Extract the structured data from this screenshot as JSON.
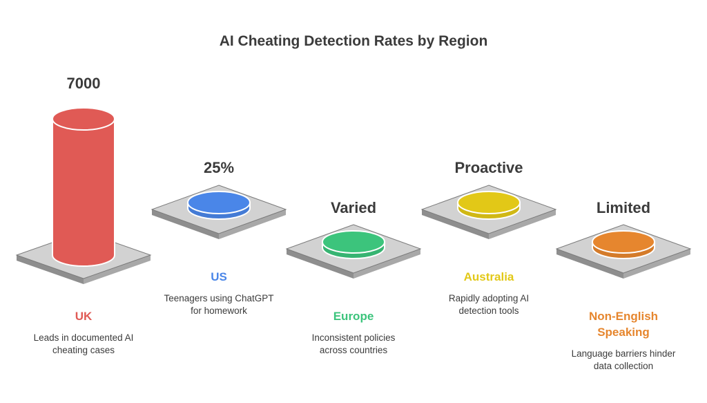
{
  "title": "AI Cheating Detection Rates by Region",
  "regions": [
    {
      "name": "UK",
      "value": "7000",
      "description": "Leads in documented AI cheating cases",
      "color": "#e05a55"
    },
    {
      "name": "US",
      "value": "25%",
      "description": "Teenagers using ChatGPT for homework",
      "color": "#4a86e8"
    },
    {
      "name": "Europe",
      "value": "Varied",
      "description": "Inconsistent policies across countries",
      "color": "#3cc47c"
    },
    {
      "name": "Australia",
      "value": "Proactive",
      "description": "Rapidly adopting AI detection tools",
      "color": "#e2c817"
    },
    {
      "name": "Non-English Speaking",
      "value": "Limited",
      "description": "Language barriers hinder data collection",
      "color": "#e6862e"
    }
  ]
}
